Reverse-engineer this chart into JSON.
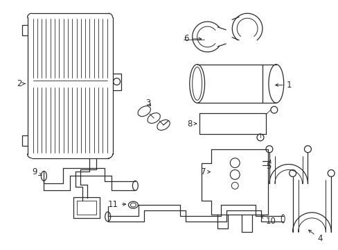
{
  "bg_color": "#ffffff",
  "lc": "#2a2a2a",
  "lw": 0.9,
  "fig_w": 4.89,
  "fig_h": 3.6,
  "dpi": 100
}
